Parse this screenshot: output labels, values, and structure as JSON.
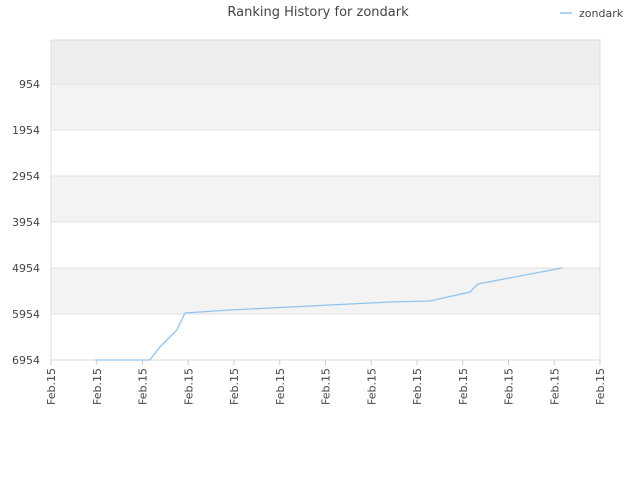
{
  "chart_data": {
    "type": "line",
    "title": "Ranking History for zondark",
    "x": [
      0.96,
      2.16,
      2.38,
      2.75,
      2.93,
      3.26,
      3.91,
      4.79,
      5.66,
      6.54,
      7.41,
      8.28,
      9.16,
      9.33,
      10.25,
      11.17
    ],
    "series": [
      {
        "name": "zondark",
        "color": "#90c4f0",
        "values": [
          6954,
          6954,
          6671,
          6302,
          5932,
          5911,
          5867,
          5824,
          5780,
          5737,
          5693,
          5672,
          5476,
          5302,
          5128,
          4954
        ]
      }
    ],
    "xlim": [
      0,
      12
    ],
    "xticks": [
      {
        "value": 0,
        "label": "Feb.15"
      },
      {
        "value": 1,
        "label": "Feb.15"
      },
      {
        "value": 2,
        "label": "Feb.15"
      },
      {
        "value": 3,
        "label": "Feb.15"
      },
      {
        "value": 4,
        "label": "Feb.15"
      },
      {
        "value": 5,
        "label": "Feb.15"
      },
      {
        "value": 6,
        "label": "Feb.15"
      },
      {
        "value": 7,
        "label": "Feb.15"
      },
      {
        "value": 8,
        "label": "Feb.15"
      },
      {
        "value": 9,
        "label": "Feb.15"
      },
      {
        "value": 10,
        "label": "Feb.15"
      },
      {
        "value": 11,
        "label": "Feb.15"
      },
      {
        "value": 12,
        "label": "Feb.15"
      }
    ],
    "ylim": [
      6954,
      -2
    ],
    "yticks": [
      954,
      1954,
      2954,
      3954,
      4954,
      5954,
      6954
    ],
    "grid": true,
    "legend": "top-right"
  }
}
